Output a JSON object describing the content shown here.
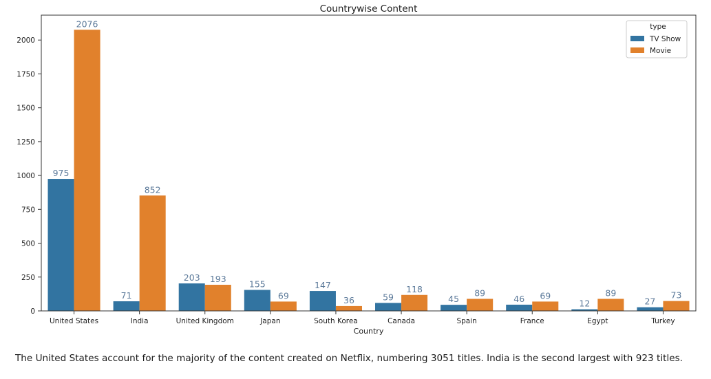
{
  "chart_data": {
    "type": "bar",
    "title": "Countrywise Content",
    "xlabel": "Country",
    "ylabel": "",
    "categories": [
      "United States",
      "India",
      "United Kingdom",
      "Japan",
      "South Korea",
      "Canada",
      "Spain",
      "France",
      "Egypt",
      "Turkey"
    ],
    "series": [
      {
        "name": "TV Show",
        "color": "#3274a1",
        "values": [
          975,
          71,
          203,
          155,
          147,
          59,
          45,
          46,
          12,
          27
        ]
      },
      {
        "name": "Movie",
        "color": "#e1812c",
        "values": [
          2076,
          852,
          193,
          69,
          36,
          118,
          89,
          69,
          89,
          73
        ]
      }
    ],
    "ylim": [
      0,
      2184
    ],
    "yticks": [
      0,
      250,
      500,
      750,
      1000,
      1250,
      1500,
      1750,
      2000
    ],
    "legend": {
      "title": "type",
      "placement": "top-right"
    },
    "grid": false,
    "data_label_color": "#5c7a9a"
  },
  "caption": "The United States account for the majority of the content created on Netflix, numbering 3051 titles. India is the second largest with 923 titles."
}
